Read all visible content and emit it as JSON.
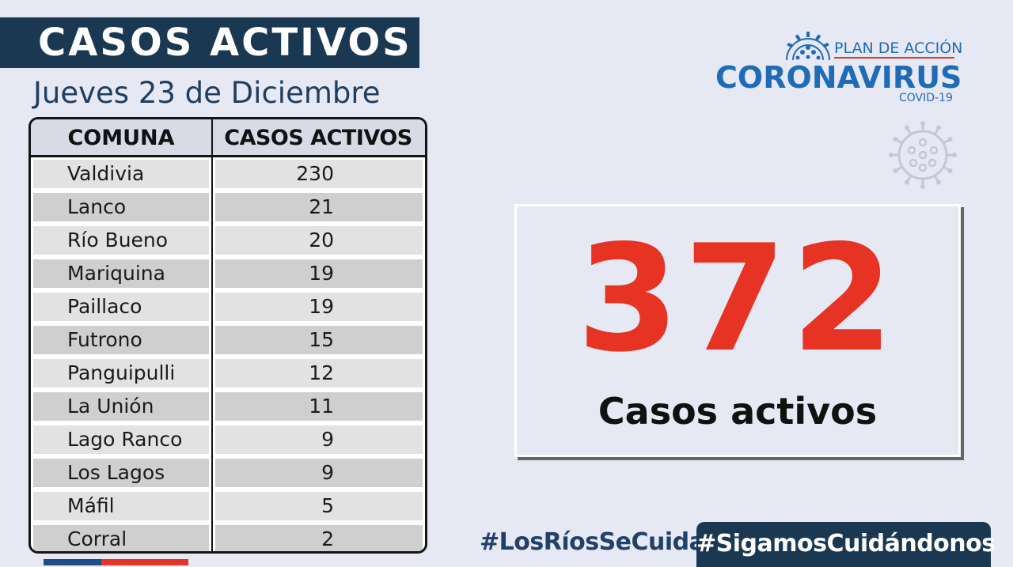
{
  "header": {
    "title": "CASOS ACTIVOS",
    "date": "Jueves 23  de Diciembre"
  },
  "table": {
    "columns": [
      "COMUNA",
      "CASOS ACTIVOS"
    ],
    "rows": [
      {
        "comuna": "Valdivia",
        "casos": "230"
      },
      {
        "comuna": "Lanco",
        "casos": "21"
      },
      {
        "comuna": "Río Bueno",
        "casos": "20"
      },
      {
        "comuna": "Mariquina",
        "casos": "19"
      },
      {
        "comuna": "Paillaco",
        "casos": "19"
      },
      {
        "comuna": "Futrono",
        "casos": "15"
      },
      {
        "comuna": "Panguipulli",
        "casos": "12"
      },
      {
        "comuna": "La Unión",
        "casos": "11"
      },
      {
        "comuna": "Lago Ranco",
        "casos": "9"
      },
      {
        "comuna": "Los Lagos",
        "casos": "9"
      },
      {
        "comuna": "Máfil",
        "casos": "5"
      },
      {
        "comuna": "Corral",
        "casos": "2"
      }
    ]
  },
  "logo": {
    "plan": "PLAN DE ACCIÓN",
    "name": "CORONAVIRUS",
    "sub": "COVID-19",
    "icon": "virus-icon"
  },
  "total": {
    "value": "372",
    "label": "Casos activos"
  },
  "hashtags": {
    "left": "#LosRíosSeCuida",
    "right": "#SigamosCuidándonos"
  },
  "colors": {
    "navy": "#1b3852",
    "accent_red": "#e63323",
    "brand_blue": "#1f6bb6",
    "background": "#e6e9f3"
  }
}
